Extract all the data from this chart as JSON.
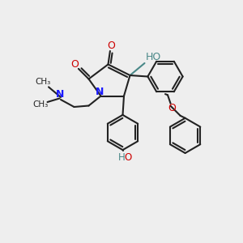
{
  "bg_color": "#eeeeee",
  "bond_color": "#222222",
  "bond_width": 1.5,
  "N_color": "#1a1aff",
  "O_color": "#cc0000",
  "teal_color": "#4a8888",
  "figsize": [
    3.0,
    3.0
  ],
  "dpi": 100,
  "xlim": [
    0,
    10
  ],
  "ylim": [
    0,
    10
  ]
}
